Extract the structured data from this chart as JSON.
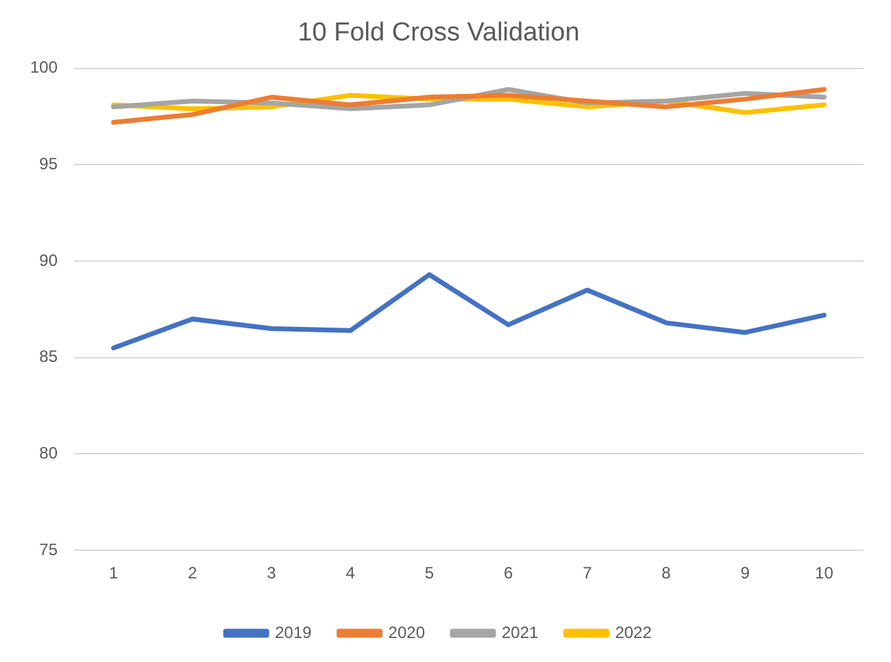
{
  "chart_data": {
    "type": "line",
    "title": "10 Fold Cross Validation",
    "categories": [
      "1",
      "2",
      "3",
      "4",
      "5",
      "6",
      "7",
      "8",
      "9",
      "10"
    ],
    "series": [
      {
        "name": "2019",
        "color": "#4472c4",
        "values": [
          85.5,
          87.0,
          86.5,
          86.4,
          89.3,
          86.7,
          88.5,
          86.8,
          86.3,
          87.2
        ]
      },
      {
        "name": "2020",
        "color": "#ed7d31",
        "values": [
          97.2,
          97.6,
          98.5,
          98.1,
          98.5,
          98.6,
          98.3,
          98.0,
          98.4,
          98.9
        ]
      },
      {
        "name": "2021",
        "color": "#a5a5a5",
        "values": [
          98.0,
          98.3,
          98.2,
          97.9,
          98.1,
          98.9,
          98.2,
          98.3,
          98.7,
          98.5
        ]
      },
      {
        "name": "2022",
        "color": "#ffc000",
        "values": [
          98.1,
          97.9,
          98.0,
          98.6,
          98.4,
          98.4,
          98.0,
          98.3,
          97.7,
          98.1
        ]
      }
    ],
    "ylim": [
      75,
      100
    ],
    "yticks": [
      75,
      80,
      85,
      90,
      95,
      100
    ],
    "grid": "y",
    "legend": "bottom",
    "marker": "none",
    "line_style": "solid"
  }
}
